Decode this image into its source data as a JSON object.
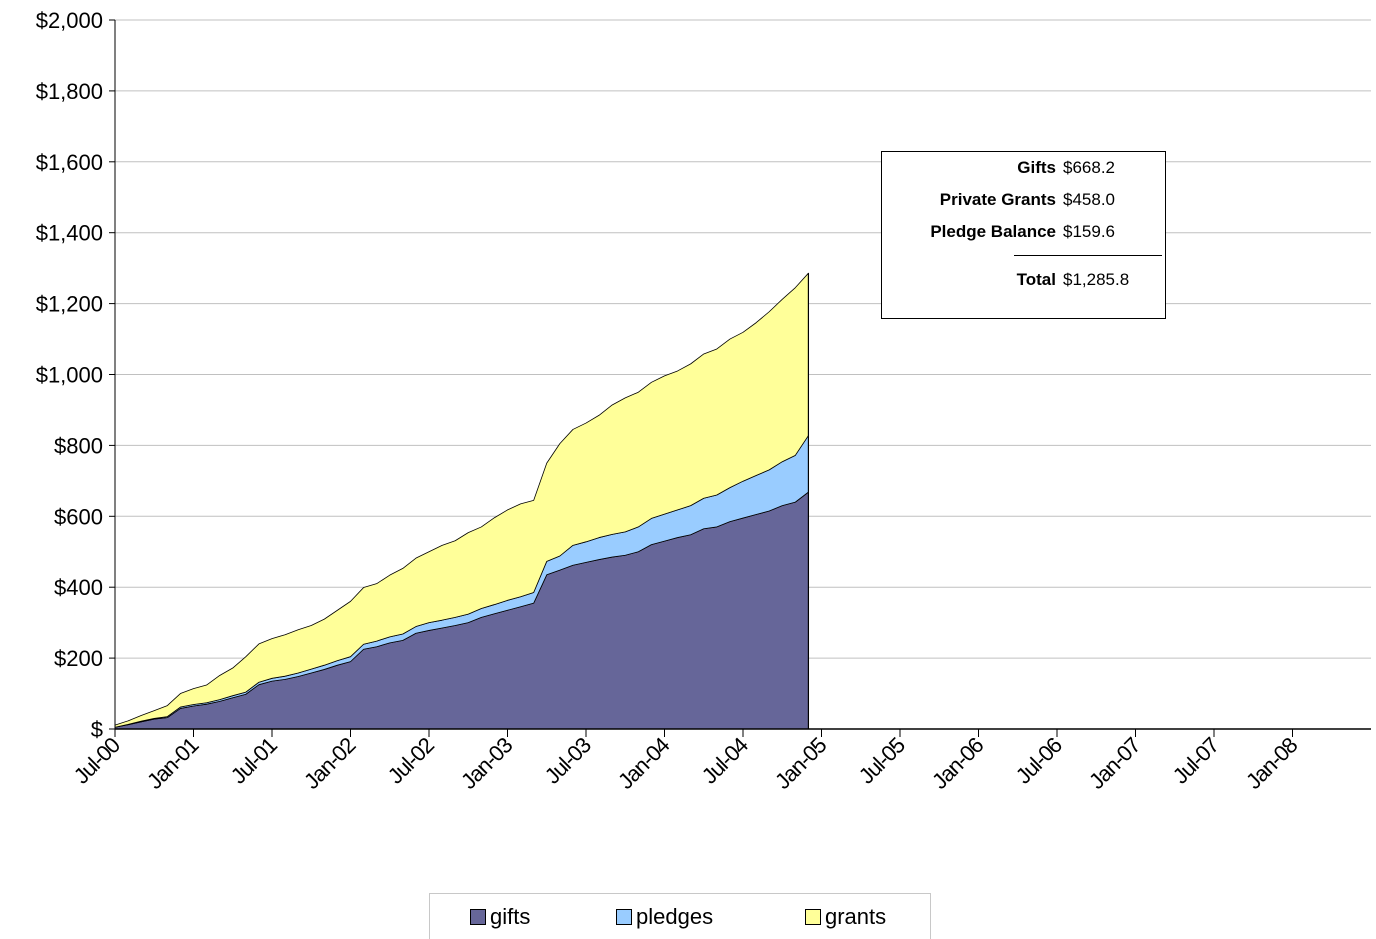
{
  "chart_data": {
    "type": "area",
    "stacked": true,
    "x_ticks": [
      "Jul-00",
      "Jan-01",
      "Jul-01",
      "Jan-02",
      "Jul-02",
      "Jan-03",
      "Jul-03",
      "Jan-04",
      "Jul-04",
      "Jan-05",
      "Jul-05",
      "Jan-06",
      "Jul-06",
      "Jan-07",
      "Jul-07",
      "Jan-08"
    ],
    "y_ticks": [
      "$",
      "$200",
      "$400",
      "$600",
      "$800",
      "$1,000",
      "$1,200",
      "$1,400",
      "$1,600",
      "$1,800",
      "$2,000"
    ],
    "ylim": [
      0,
      2000
    ],
    "x_range": [
      "Jul-00",
      "Jun-08"
    ],
    "grid": true,
    "legend_position": "bottom",
    "x": [
      "Jul-00",
      "Aug-00",
      "Sep-00",
      "Oct-00",
      "Nov-00",
      "Dec-00",
      "Jan-01",
      "Feb-01",
      "Mar-01",
      "Apr-01",
      "May-01",
      "Jun-01",
      "Jul-01",
      "Aug-01",
      "Sep-01",
      "Oct-01",
      "Nov-01",
      "Dec-01",
      "Jan-02",
      "Feb-02",
      "Mar-02",
      "Apr-02",
      "May-02",
      "Jun-02",
      "Jul-02",
      "Aug-02",
      "Sep-02",
      "Oct-02",
      "Nov-02",
      "Dec-02",
      "Jan-03",
      "Feb-03",
      "Mar-03",
      "Apr-03",
      "May-03",
      "Jun-03",
      "Jul-03",
      "Aug-03",
      "Sep-03",
      "Oct-03",
      "Nov-03",
      "Dec-03",
      "Jan-04",
      "Feb-04",
      "Mar-04",
      "Apr-04",
      "May-04",
      "Jun-04",
      "Jul-04",
      "Aug-04",
      "Sep-04",
      "Oct-04",
      "Nov-04",
      "Dec-04"
    ],
    "series": [
      {
        "name": "gifts",
        "color": "#666699",
        "values": [
          5,
          12,
          20,
          28,
          32,
          58,
          65,
          70,
          78,
          88,
          98,
          125,
          135,
          140,
          148,
          158,
          168,
          180,
          190,
          225,
          232,
          243,
          250,
          270,
          278,
          285,
          292,
          300,
          315,
          325,
          335,
          345,
          355,
          435,
          448,
          462,
          470,
          478,
          485,
          490,
          500,
          520,
          530,
          540,
          548,
          565,
          570,
          585,
          595,
          605,
          615,
          630,
          640,
          668.2
        ]
      },
      {
        "name": "pledges",
        "color": "#99CCFF",
        "values": [
          0,
          1,
          2,
          2,
          3,
          4,
          4,
          4,
          5,
          6,
          6,
          7,
          8,
          9,
          10,
          11,
          12,
          13,
          14,
          14,
          16,
          17,
          18,
          19,
          22,
          22,
          23,
          24,
          25,
          26,
          28,
          28,
          30,
          38,
          40,
          56,
          58,
          62,
          64,
          66,
          70,
          74,
          76,
          78,
          82,
          86,
          90,
          96,
          104,
          110,
          116,
          124,
          132,
          159.6
        ]
      },
      {
        "name": "grants",
        "color": "#FFFF99",
        "values": [
          6,
          10,
          16,
          22,
          31,
          38,
          45,
          50,
          68,
          78,
          100,
          108,
          112,
          117,
          122,
          123,
          130,
          142,
          156,
          160,
          162,
          174,
          185,
          193,
          200,
          211,
          216,
          230,
          230,
          245,
          255,
          262,
          260,
          277,
          317,
          327,
          335,
          345,
          365,
          378,
          380,
          384,
          390,
          392,
          400,
          407,
          412,
          419,
          420,
          431,
          446,
          458,
          473,
          458.0
        ]
      }
    ]
  },
  "summary": {
    "rows": [
      {
        "label": "Gifts",
        "value": "$668.2"
      },
      {
        "label": "Private Grants",
        "value": "$458.0"
      },
      {
        "label": "Pledge Balance",
        "value": "$159.6"
      }
    ],
    "total_label": "Total",
    "total_value": "$1,285.8"
  }
}
